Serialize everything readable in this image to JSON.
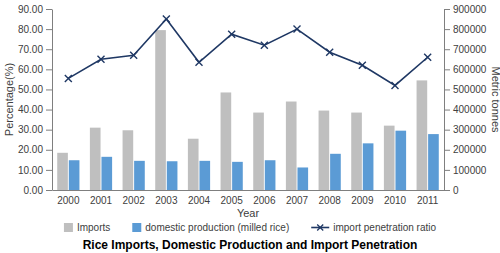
{
  "chart_data": {
    "type": "bar",
    "title": "Rice Imports, Domestic Production and Import Penetration",
    "x_label": "Year",
    "y_label": "Percentage(%)",
    "y2_label": "Metric tonnes",
    "categories": [
      "2000",
      "2001",
      "2002",
      "2003",
      "2004",
      "2005",
      "2006",
      "2007",
      "2008",
      "2009",
      "2010",
      "2011"
    ],
    "ylim": [
      0,
      90
    ],
    "yticks": [
      {
        "value": 0,
        "label": "0.00"
      },
      {
        "value": 10,
        "label": "10.00"
      },
      {
        "value": 20,
        "label": "20.00"
      },
      {
        "value": 30,
        "label": "30.00"
      },
      {
        "value": 40,
        "label": "40.00"
      },
      {
        "value": 50,
        "label": "50.00"
      },
      {
        "value": 60,
        "label": "60.00"
      },
      {
        "value": 70,
        "label": "70.00"
      },
      {
        "value": 80,
        "label": "80.00"
      },
      {
        "value": 90,
        "label": "90.00"
      }
    ],
    "y2lim": [
      0,
      900000
    ],
    "y2ticks": [
      0,
      100000,
      200000,
      300000,
      400000,
      500000,
      600000,
      700000,
      800000,
      900000
    ],
    "grid": false,
    "legend": "bottom",
    "series": [
      {
        "name": "Imports",
        "type": "bar",
        "axis": "y2",
        "color": "#bfbfbf",
        "values": [
          185000,
          310000,
          297000,
          795000,
          255000,
          485000,
          385000,
          440000,
          395000,
          385000,
          320000,
          545000
        ]
      },
      {
        "name": "domestic production (milled rice)",
        "type": "bar",
        "axis": "y2",
        "color": "#5b9bd5",
        "values": [
          148000,
          165000,
          145000,
          143000,
          145000,
          140000,
          148000,
          112000,
          180000,
          232000,
          295000,
          278000
        ]
      },
      {
        "name": "import penetration ratio",
        "type": "line",
        "axis": "y",
        "color": "#1f3864",
        "marker": "x",
        "values": [
          55.5,
          65,
          67,
          85,
          63.5,
          77.5,
          72,
          80,
          68.5,
          62,
          52,
          66
        ]
      }
    ]
  }
}
